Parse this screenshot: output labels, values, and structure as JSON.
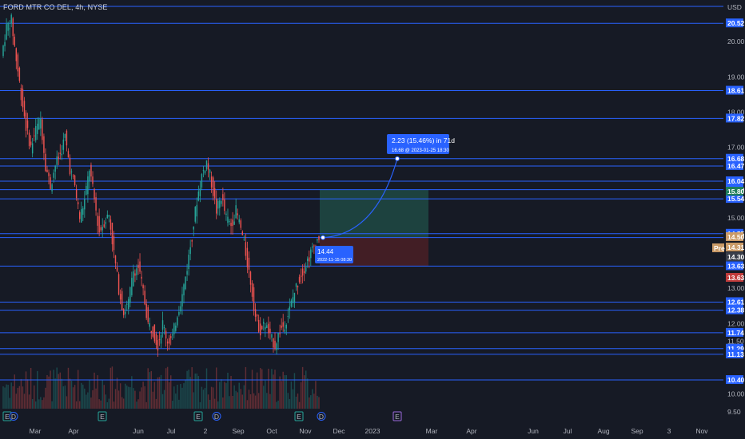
{
  "header": {
    "symbol_title": "FORD MTR CO DEL, 4h, NYSE",
    "currency": "USD"
  },
  "price_scale": {
    "ticks": [
      "20.00",
      "19.00",
      "18.00",
      "17.00",
      "15.00",
      "13.00",
      "12.00",
      "11.50",
      "10.00",
      "9.50"
    ],
    "level_labels": [
      "20.52",
      "18.61",
      "17.82",
      "16.68",
      "16.47",
      "16.04",
      "15.80",
      "15.54",
      "14.55",
      "13.63",
      "12.61",
      "12.38",
      "11.74",
      "11.29",
      "11.13",
      "10.40"
    ],
    "current_price_labels": [
      "15.80",
      "14.50",
      "14.31",
      "14.30",
      "13.63"
    ],
    "pre_market_tag": "Pre"
  },
  "time_axis": {
    "labels": [
      "Mar",
      "Apr",
      "Jun",
      "Jul",
      "2",
      "Sep",
      "Oct",
      "Nov",
      "Dec",
      "2023",
      "Mar",
      "Apr",
      "Jun",
      "Jul",
      "Aug",
      "Sep",
      "3",
      "Nov"
    ]
  },
  "event_markers": {
    "labels": [
      "E",
      "D",
      "E",
      "E",
      "D",
      "E",
      "D",
      "E"
    ]
  },
  "projection": {
    "gain_label": "2.23 (15.46%) in 71d",
    "target_label": "16.68 @ 2023-01-25 18:30",
    "entry_price": "14.44",
    "entry_time": "2022-11-15 08:30"
  },
  "chart_data": {
    "type": "candlestick",
    "symbol": "FORD MTR CO DEL",
    "interval": "4h",
    "exchange": "NYSE",
    "ylim": [
      9.45,
      21.0
    ],
    "horizontal_levels": [
      21.0,
      20.52,
      18.61,
      17.82,
      16.68,
      16.47,
      16.04,
      15.8,
      15.54,
      14.55,
      14.44,
      13.63,
      12.61,
      12.38,
      11.74,
      11.29,
      11.13,
      10.4
    ],
    "price_path": [
      [
        20.4,
        19.6
      ],
      [
        20.6,
        20.3
      ],
      [
        19.5,
        20.1
      ],
      [
        18.5,
        19.5
      ],
      [
        17.6,
        18.5
      ],
      [
        17.0,
        17.6
      ],
      [
        17.5,
        17.0
      ],
      [
        17.8,
        17.5
      ],
      [
        16.5,
        17.8
      ],
      [
        15.9,
        16.5
      ],
      [
        16.5,
        15.9
      ],
      [
        16.8,
        16.5
      ],
      [
        17.3,
        16.8
      ],
      [
        16.4,
        17.3
      ],
      [
        15.9,
        16.4
      ],
      [
        15.0,
        15.9
      ],
      [
        15.5,
        15.0
      ],
      [
        16.4,
        15.5
      ],
      [
        15.5,
        16.4
      ],
      [
        14.6,
        15.5
      ],
      [
        14.9,
        14.6
      ],
      [
        15.1,
        14.9
      ],
      [
        14.0,
        15.1
      ],
      [
        13.0,
        14.0
      ],
      [
        12.3,
        13.0
      ],
      [
        12.6,
        12.3
      ],
      [
        13.5,
        12.6
      ],
      [
        13.6,
        13.5
      ],
      [
        12.9,
        13.6
      ],
      [
        12.0,
        12.9
      ],
      [
        11.8,
        12.0
      ],
      [
        11.4,
        11.8
      ],
      [
        12.0,
        11.4
      ],
      [
        11.5,
        12.0
      ],
      [
        11.6,
        11.5
      ],
      [
        12.3,
        11.6
      ],
      [
        12.8,
        12.3
      ],
      [
        13.6,
        12.8
      ],
      [
        14.5,
        13.6
      ],
      [
        15.5,
        14.5
      ],
      [
        16.2,
        15.5
      ],
      [
        16.6,
        16.2
      ],
      [
        16.0,
        16.6
      ],
      [
        15.2,
        16.0
      ],
      [
        15.6,
        15.2
      ],
      [
        15.0,
        15.6
      ],
      [
        14.8,
        15.0
      ],
      [
        15.2,
        14.8
      ],
      [
        14.7,
        15.2
      ],
      [
        14.0,
        14.7
      ],
      [
        13.2,
        14.0
      ],
      [
        12.2,
        13.2
      ],
      [
        11.8,
        12.2
      ],
      [
        12.0,
        11.8
      ],
      [
        11.6,
        12.0
      ],
      [
        11.4,
        11.6
      ],
      [
        11.8,
        11.4
      ],
      [
        12.0,
        11.8
      ],
      [
        12.4,
        12.0
      ],
      [
        12.9,
        12.4
      ],
      [
        13.3,
        12.9
      ],
      [
        13.6,
        13.3
      ],
      [
        13.9,
        13.6
      ],
      [
        14.2,
        13.9
      ],
      [
        14.45,
        14.2
      ]
    ]
  },
  "colors": {
    "background": "#161a25",
    "level_line": "#2962ff",
    "up_candle": "#26a69a",
    "down_candle": "#ef5350",
    "profit_zone": "#1e4a44",
    "loss_zone": "#4a2026",
    "current_price_box": "#c99a67",
    "level_box": "#2962ff",
    "red_box": "#c03b3b",
    "green_box": "#1f7f5a"
  }
}
